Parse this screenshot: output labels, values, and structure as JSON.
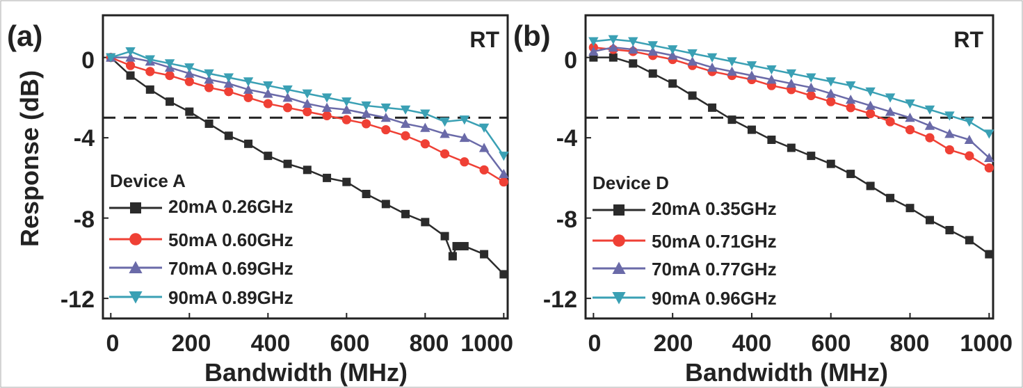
{
  "figure": {
    "ylabel": "Response (dB)",
    "threshold_db": -3
  },
  "chart_data": [
    {
      "type": "line",
      "panel_label": "(a)",
      "corner_label": "RT",
      "legend_title": "Device A",
      "xlabel": "Bandwidth (MHz)",
      "ylabel": "Response (dB)",
      "xlim": [
        -20,
        1010
      ],
      "ylim": [
        -13,
        2.1
      ],
      "xticks": [
        0,
        200,
        400,
        600,
        800,
        1000
      ],
      "yticks": [
        0,
        -4,
        -8,
        -12
      ],
      "threshold_db": -3,
      "grid": false,
      "legend_position": "bottom-left",
      "series": [
        {
          "name": "20mA 0.26GHz",
          "marker": "square",
          "color": "#2b2b2b",
          "x": [
            0,
            50,
            100,
            150,
            200,
            250,
            300,
            350,
            400,
            450,
            500,
            550,
            600,
            650,
            700,
            750,
            800,
            850,
            870,
            880,
            900,
            950,
            1000
          ],
          "y": [
            0,
            -0.9,
            -1.6,
            -2.2,
            -2.7,
            -3.3,
            -3.9,
            -4.3,
            -4.9,
            -5.3,
            -5.6,
            -6.0,
            -6.2,
            -6.8,
            -7.3,
            -7.8,
            -8.2,
            -8.9,
            -9.9,
            -9.4,
            -9.4,
            -9.8,
            -10.8
          ]
        },
        {
          "name": "50mA 0.60GHz",
          "marker": "circle",
          "color": "#ef4035",
          "x": [
            0,
            50,
            100,
            150,
            200,
            250,
            300,
            350,
            400,
            450,
            500,
            550,
            600,
            650,
            700,
            750,
            800,
            850,
            900,
            950,
            1000
          ],
          "y": [
            0,
            -0.4,
            -0.7,
            -0.9,
            -1.2,
            -1.5,
            -1.7,
            -2.0,
            -2.3,
            -2.5,
            -2.7,
            -2.9,
            -3.1,
            -3.3,
            -3.6,
            -3.9,
            -4.3,
            -4.8,
            -5.2,
            -5.6,
            -6.2
          ]
        },
        {
          "name": "70mA 0.69GHz",
          "marker": "triangle-up",
          "color": "#6a6aa8",
          "x": [
            0,
            50,
            100,
            150,
            200,
            250,
            300,
            350,
            400,
            450,
            500,
            550,
            600,
            650,
            700,
            750,
            800,
            850,
            900,
            950,
            1000
          ],
          "y": [
            0,
            0.0,
            -0.2,
            -0.5,
            -0.8,
            -1.1,
            -1.3,
            -1.6,
            -1.8,
            -2.0,
            -2.3,
            -2.5,
            -2.6,
            -2.8,
            -3.0,
            -3.3,
            -3.5,
            -3.8,
            -4.0,
            -4.5,
            -5.8
          ]
        },
        {
          "name": "90mA 0.89GHz",
          "marker": "triangle-down",
          "color": "#3aa0b4",
          "x": [
            0,
            50,
            100,
            150,
            200,
            250,
            300,
            350,
            400,
            450,
            500,
            550,
            600,
            650,
            700,
            750,
            800,
            850,
            900,
            950,
            1000
          ],
          "y": [
            0,
            0.3,
            -0.1,
            -0.3,
            -0.5,
            -0.8,
            -1.0,
            -1.2,
            -1.4,
            -1.6,
            -1.8,
            -2.0,
            -2.2,
            -2.4,
            -2.5,
            -2.6,
            -2.8,
            -3.2,
            -3.1,
            -3.5,
            -4.9
          ]
        }
      ]
    },
    {
      "type": "line",
      "panel_label": "(b)",
      "corner_label": "RT",
      "legend_title": "Device D",
      "xlabel": "Bandwidth (MHz)",
      "ylabel": "Response (dB)",
      "xlim": [
        -20,
        1010
      ],
      "ylim": [
        -13,
        2.1
      ],
      "xticks": [
        0,
        200,
        400,
        600,
        800,
        1000
      ],
      "yticks": [
        0,
        -4,
        -8,
        -12
      ],
      "threshold_db": -3,
      "grid": false,
      "legend_position": "bottom-left",
      "series": [
        {
          "name": "20mA 0.35GHz",
          "marker": "square",
          "color": "#2b2b2b",
          "x": [
            0,
            50,
            100,
            150,
            200,
            250,
            300,
            350,
            400,
            450,
            500,
            550,
            600,
            650,
            700,
            750,
            800,
            850,
            900,
            950,
            1000
          ],
          "y": [
            0,
            0.0,
            -0.3,
            -0.8,
            -1.3,
            -1.9,
            -2.5,
            -3.1,
            -3.6,
            -4.1,
            -4.5,
            -4.9,
            -5.3,
            -5.8,
            -6.4,
            -7.0,
            -7.5,
            -8.1,
            -8.6,
            -9.1,
            -9.8
          ]
        },
        {
          "name": "50mA 0.71GHz",
          "marker": "circle",
          "color": "#ef4035",
          "x": [
            0,
            50,
            100,
            150,
            200,
            250,
            300,
            350,
            400,
            450,
            500,
            550,
            600,
            650,
            700,
            750,
            800,
            850,
            900,
            950,
            1000
          ],
          "y": [
            0.5,
            0.4,
            0.3,
            0.1,
            -0.1,
            -0.4,
            -0.7,
            -0.9,
            -1.1,
            -1.4,
            -1.6,
            -1.9,
            -2.2,
            -2.5,
            -2.8,
            -3.2,
            -3.6,
            -4.0,
            -4.6,
            -4.9,
            -5.5
          ]
        },
        {
          "name": "70mA 0.77GHz",
          "marker": "triangle-up",
          "color": "#6a6aa8",
          "x": [
            0,
            50,
            100,
            150,
            200,
            250,
            300,
            350,
            400,
            450,
            500,
            550,
            600,
            650,
            700,
            750,
            800,
            850,
            900,
            950,
            1000
          ],
          "y": [
            0.3,
            0.5,
            0.4,
            0.3,
            0.1,
            -0.2,
            -0.5,
            -0.7,
            -0.9,
            -1.1,
            -1.3,
            -1.5,
            -1.8,
            -2.1,
            -2.4,
            -2.7,
            -3.0,
            -3.4,
            -3.8,
            -4.1,
            -5.0
          ]
        },
        {
          "name": "90mA 0.96GHz",
          "marker": "triangle-down",
          "color": "#3aa0b4",
          "x": [
            0,
            50,
            100,
            150,
            200,
            250,
            300,
            350,
            400,
            450,
            500,
            550,
            600,
            650,
            700,
            750,
            800,
            850,
            900,
            950,
            1000
          ],
          "y": [
            0.8,
            0.9,
            0.8,
            0.6,
            0.4,
            0.2,
            0.0,
            -0.2,
            -0.4,
            -0.6,
            -0.8,
            -1.0,
            -1.2,
            -1.4,
            -1.7,
            -2.0,
            -2.3,
            -2.6,
            -2.9,
            -3.2,
            -3.8
          ]
        }
      ]
    }
  ]
}
